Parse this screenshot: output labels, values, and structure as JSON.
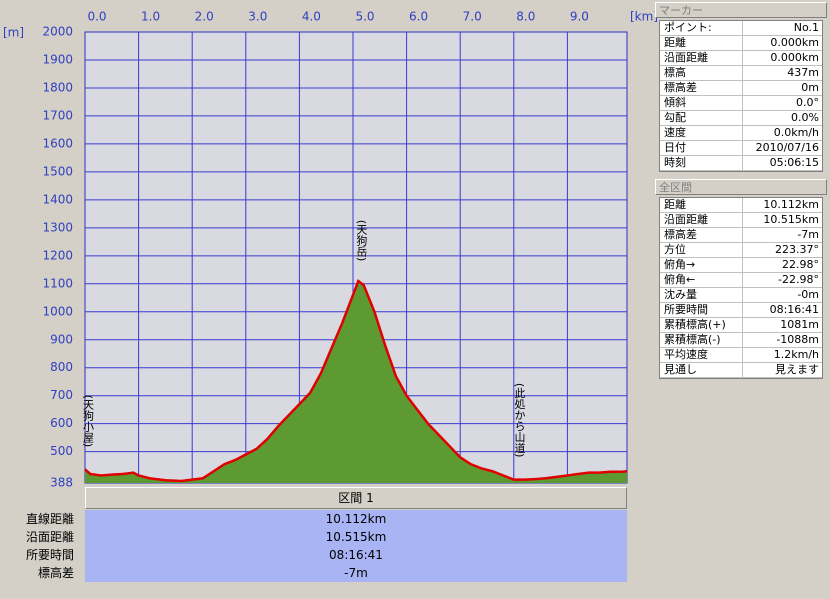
{
  "chart_data": {
    "type": "area",
    "y_unit": "[m]",
    "x_unit": "[km]",
    "x": [
      0,
      0.1,
      0.3,
      0.5,
      0.7,
      0.9,
      1.0,
      1.2,
      1.5,
      1.8,
      2.0,
      2.2,
      2.4,
      2.6,
      2.8,
      3.0,
      3.2,
      3.4,
      3.6,
      3.8,
      4.0,
      4.2,
      4.4,
      4.6,
      4.8,
      5.0,
      5.1,
      5.2,
      5.4,
      5.6,
      5.8,
      6.0,
      6.2,
      6.4,
      6.6,
      6.8,
      7.0,
      7.2,
      7.4,
      7.6,
      7.8,
      8.0,
      8.2,
      8.4,
      8.6,
      8.8,
      9.0,
      9.2,
      9.4,
      9.6,
      9.8,
      10.0,
      10.112
    ],
    "series": [
      {
        "color": "#e00000",
        "fill": "#5e9a32",
        "values": [
          437,
          420,
          415,
          418,
          420,
          425,
          415,
          405,
          398,
          395,
          400,
          405,
          430,
          455,
          470,
          490,
          510,
          545,
          590,
          630,
          670,
          710,
          780,
          870,
          960,
          1060,
          1110,
          1095,
          1000,
          880,
          770,
          700,
          650,
          600,
          560,
          520,
          480,
          455,
          440,
          430,
          415,
          400,
          400,
          402,
          405,
          410,
          415,
          420,
          425,
          425,
          428,
          428,
          430
        ]
      }
    ],
    "xlim": [
      0,
      10.112
    ],
    "xticks": [
      {
        "value": 0,
        "label": "0.0"
      },
      {
        "value": 1,
        "label": "1.0"
      },
      {
        "value": 2,
        "label": "2.0"
      },
      {
        "value": 3,
        "label": "3.0"
      },
      {
        "value": 4,
        "label": "4.0"
      },
      {
        "value": 5,
        "label": "5.0"
      },
      {
        "value": 6,
        "label": "6.0"
      },
      {
        "value": 7,
        "label": "7.0"
      },
      {
        "value": 8,
        "label": "8.0"
      },
      {
        "value": 9,
        "label": "9.0"
      }
    ],
    "ylim": [
      388,
      2000
    ],
    "yticks": [
      388,
      500,
      600,
      700,
      800,
      900,
      1000,
      1100,
      1200,
      1300,
      1400,
      1500,
      1600,
      1700,
      1800,
      1900,
      2000
    ],
    "grid": true,
    "annotations": [
      {
        "text": "(天狗小屋)",
        "x": 0,
        "y": 704
      },
      {
        "text": "(天狗岳)",
        "x": 5.1,
        "y": 1329
      },
      {
        "text": "(此処から山道)",
        "x": 8.05,
        "y": 746
      }
    ]
  },
  "section_table": {
    "header": "区間 1",
    "rows": [
      [
        "直線距離",
        "10.112km"
      ],
      [
        "沿面距離",
        "10.515km"
      ],
      [
        "所要時間",
        "08:16:41"
      ],
      [
        "標高差",
        "-7m"
      ]
    ]
  },
  "marker_panel": {
    "title": "マーカー",
    "rows": [
      [
        "ポイント:",
        "No.1"
      ],
      [
        "距離",
        "0.000km"
      ],
      [
        "沿面距離",
        "0.000km"
      ],
      [
        "標高",
        "437m"
      ],
      [
        "標高差",
        "0m"
      ],
      [
        "傾斜",
        "0.0°"
      ],
      [
        "勾配",
        "0.0%"
      ],
      [
        "速度",
        "0.0km/h"
      ],
      [
        "日付",
        "2010/07/16"
      ],
      [
        "時刻",
        "05:06:15"
      ]
    ]
  },
  "total_panel": {
    "title": "全区間",
    "rows": [
      [
        "距離",
        "10.112km"
      ],
      [
        "沿面距離",
        "10.515km"
      ],
      [
        "標高差",
        "-7m"
      ],
      [
        "方位",
        "223.37°"
      ],
      [
        "俯角→",
        "22.98°"
      ],
      [
        "俯角←",
        "-22.98°"
      ],
      [
        "沈み量",
        "-0m"
      ],
      [
        "所要時間",
        "08:16:41"
      ],
      [
        "累積標高(+)",
        "1081m"
      ],
      [
        "累積標高(-)",
        "-1088m"
      ],
      [
        "平均速度",
        "1.2km/h"
      ],
      [
        "見通し",
        "見えます"
      ]
    ]
  }
}
